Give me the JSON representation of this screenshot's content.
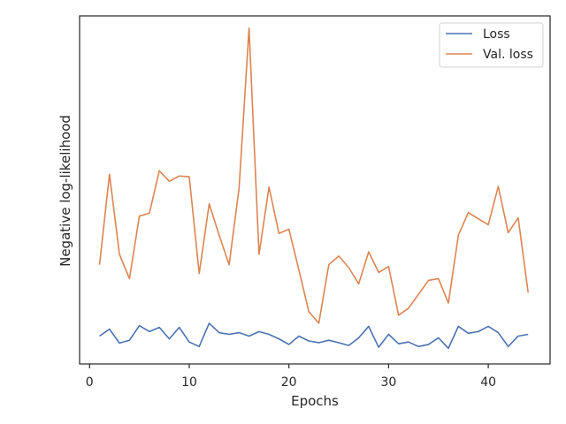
{
  "chart_data": {
    "type": "line",
    "title": "",
    "xlabel": "Epochs",
    "ylabel": "Negative log-likelihood",
    "xlim": [
      -1,
      46.2
    ],
    "ylim": [
      0,
      100
    ],
    "x_ticks": [
      0,
      10,
      20,
      30,
      40
    ],
    "y_ticks_visible": false,
    "grid": false,
    "legend": "top-right",
    "series": [
      {
        "name": "Loss",
        "color": "#4c72b0",
        "x": [
          1,
          2,
          3,
          4,
          5,
          6,
          7,
          8,
          9,
          10,
          11,
          12,
          13,
          14,
          15,
          16,
          17,
          18,
          19,
          20,
          21,
          22,
          23,
          24,
          25,
          26,
          27,
          28,
          29,
          30,
          31,
          32,
          33,
          34,
          35,
          36,
          37,
          38,
          39,
          40,
          41,
          42,
          43,
          44
        ],
        "y": [
          8,
          10,
          6,
          6.8,
          11,
          9.3,
          10.5,
          7.2,
          10.5,
          6.3,
          5,
          11.7,
          9,
          8.5,
          9,
          8,
          9.3,
          8.5,
          7.2,
          5.6,
          8,
          6.6,
          6.1,
          6.8,
          6.1,
          5.3,
          7.5,
          10.8,
          4.8,
          8.5,
          5.8,
          6.3,
          5,
          5.6,
          7.5,
          4.5,
          10.8,
          8.8,
          9.3,
          10.8,
          9,
          5,
          8,
          8.5
        ],
        "labels": []
      },
      {
        "name": "Val. loss",
        "color": "#dd8452",
        "x": [
          1,
          2,
          3,
          4,
          5,
          6,
          7,
          8,
          9,
          10,
          11,
          12,
          13,
          14,
          15,
          16,
          17,
          18,
          19,
          20,
          21,
          22,
          23,
          24,
          25,
          26,
          27,
          28,
          29,
          30,
          31,
          32,
          33,
          34,
          35,
          36,
          37,
          38,
          39,
          40,
          41,
          42,
          43,
          44
        ],
        "y": [
          28.5,
          54.5,
          31.5,
          24.5,
          42.5,
          43.3,
          55.5,
          52.5,
          54,
          53.8,
          26,
          46,
          37,
          28.5,
          50.5,
          96.5,
          31.5,
          50.8,
          37.5,
          38.7,
          27,
          15,
          11.7,
          28.5,
          31,
          27.7,
          23,
          32.2,
          26.3,
          28,
          14,
          16,
          20,
          24,
          24.5,
          17.5,
          37,
          43.5,
          41.7,
          40,
          51,
          37.7,
          42,
          20.5
        ],
        "labels": []
      }
    ]
  }
}
